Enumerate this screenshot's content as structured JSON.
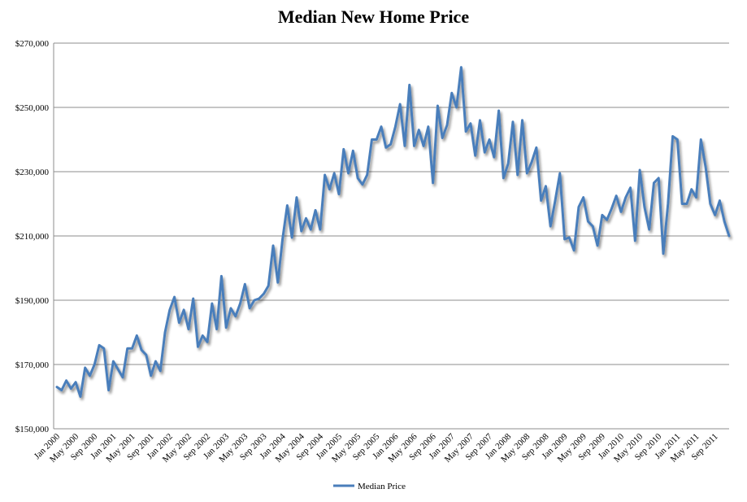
{
  "chart_data": {
    "type": "line",
    "title": "Median New Home Price",
    "xlabel": "",
    "ylabel": "",
    "ylim": [
      150000,
      270000
    ],
    "yticks": [
      "$150,000",
      "$170,000",
      "$190,000",
      "$210,000",
      "$230,000",
      "$250,000",
      "$270,000"
    ],
    "xticks": [
      "Jan 2000",
      "May 2000",
      "Sep 2000",
      "Jan 2001",
      "May 2001",
      "Sep 2001",
      "Jan 2002",
      "May 2002",
      "Sep 2002",
      "Jan 2003",
      "May 2003",
      "Sep 2003",
      "Jan 2004",
      "May 2004",
      "Sep 2004",
      "Jan 2005",
      "May 2005",
      "Sep 2005",
      "Jan 2006",
      "May 2006",
      "Sep 2006",
      "Jan 2007",
      "May 2007",
      "Sep 2007",
      "Jan 2008",
      "May 2008",
      "Sep 2008",
      "Jan 2009",
      "May 2009",
      "Sep 2009",
      "Jan 2010",
      "May 2010",
      "Sep 2010",
      "Jan 2011",
      "May 2011",
      "Sep 2011"
    ],
    "start": "Jan 2000",
    "end": "Dec 2011",
    "grid": true,
    "legend_position": "bottom",
    "line_color": "#4A7EBB",
    "series": [
      {
        "name": "Median Price",
        "values": [
          163000,
          162000,
          165000,
          162500,
          164500,
          160000,
          169000,
          166500,
          170000,
          176000,
          175000,
          162000,
          171000,
          168500,
          166000,
          175000,
          175000,
          179000,
          174500,
          173000,
          166500,
          171000,
          168000,
          180000,
          187000,
          191000,
          183000,
          187000,
          181000,
          190500,
          175500,
          179000,
          177000,
          189000,
          181000,
          197500,
          181500,
          187500,
          185000,
          189000,
          195000,
          187500,
          190000,
          190500,
          192000,
          194500,
          207000,
          195500,
          209000,
          219500,
          209500,
          222000,
          211500,
          215500,
          212000,
          218000,
          212000,
          229000,
          224500,
          229500,
          223000,
          237000,
          229500,
          236500,
          228000,
          226000,
          229000,
          240000,
          240000,
          244000,
          237500,
          238500,
          244000,
          251000,
          238000,
          257000,
          238000,
          243000,
          238000,
          244000,
          226500,
          250500,
          240500,
          244500,
          254500,
          250000,
          262500,
          242500,
          245000,
          235000,
          246000,
          236000,
          240000,
          234500,
          249000,
          228000,
          232500,
          245500,
          229000,
          246000,
          229500,
          233000,
          237500,
          221000,
          225500,
          213000,
          221000,
          229500,
          209000,
          209500,
          205500,
          219000,
          222000,
          214500,
          213000,
          207000,
          216500,
          215000,
          218500,
          222500,
          217500,
          222000,
          225000,
          208500,
          230500,
          219000,
          212000,
          226500,
          228000,
          204500,
          220000,
          241000,
          240000,
          220000,
          220000,
          224500,
          222000,
          240000,
          231500,
          220000,
          216500,
          221000,
          214500,
          210000
        ]
      }
    ]
  }
}
